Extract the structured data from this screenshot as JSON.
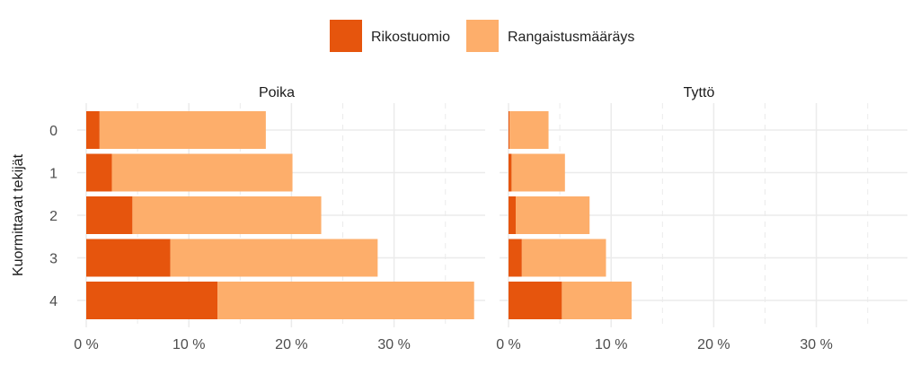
{
  "chart_data": {
    "type": "bar",
    "orientation": "horizontal",
    "stacked": true,
    "ylabel": "Kuormittavat tekijät",
    "categories": [
      "0",
      "1",
      "2",
      "3",
      "4"
    ],
    "x_ticks": [
      "0 %",
      "10 %",
      "20 %",
      "30 %"
    ],
    "xlim": [
      0,
      38
    ],
    "legend_position": "top",
    "grid": true,
    "series": [
      {
        "name": "Rikostuomio",
        "color": "#E6550D"
      },
      {
        "name": "Rangaistusmääräys",
        "color": "#FDAE6B"
      }
    ],
    "panels": [
      {
        "title": "Poika",
        "values": {
          "Rikostuomio": [
            1.3,
            2.5,
            4.5,
            8.2,
            12.8
          ],
          "Rangaistusmääräys": [
            16.2,
            17.6,
            18.4,
            20.2,
            25.0
          ]
        }
      },
      {
        "title": "Tyttö",
        "values": {
          "Rikostuomio": [
            0.1,
            0.3,
            0.7,
            1.3,
            5.2
          ],
          "Rangaistusmääräys": [
            3.8,
            5.2,
            7.2,
            8.2,
            6.8
          ]
        }
      }
    ]
  }
}
